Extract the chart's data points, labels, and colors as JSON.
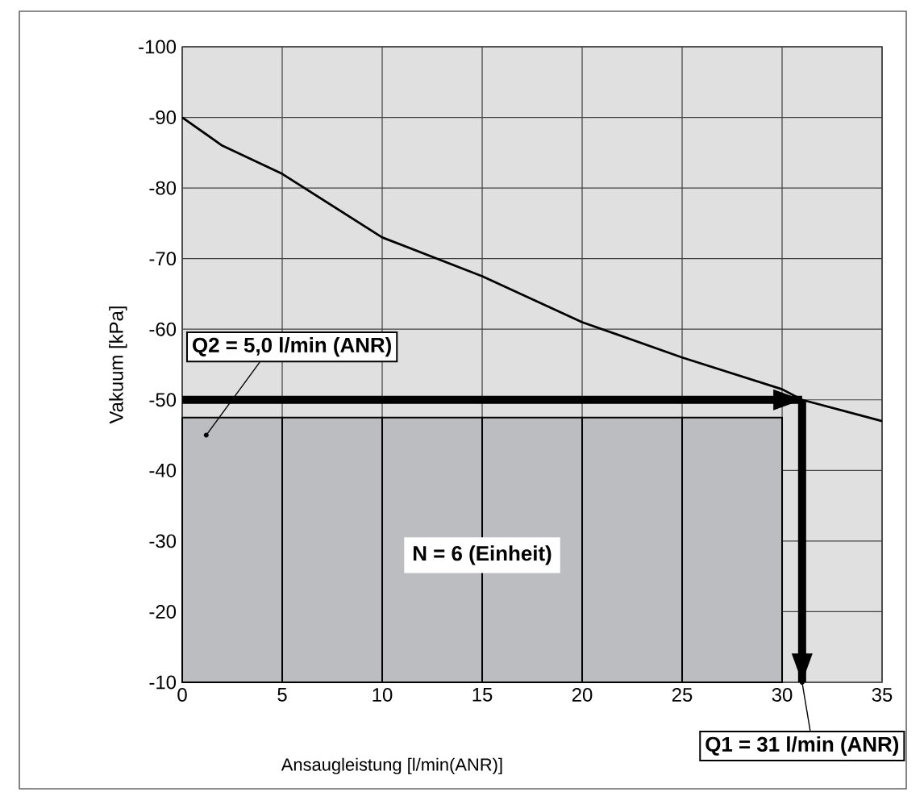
{
  "chart_data": {
    "type": "line",
    "xlabel": "Ansaugleistung [l/min(ANR)]",
    "ylabel": "Vakuum [kPa]",
    "xlim": [
      0,
      35
    ],
    "ylim": [
      -10,
      -100
    ],
    "xticks": [
      0,
      5,
      10,
      15,
      20,
      25,
      30,
      35
    ],
    "yticks": [
      -100,
      -90,
      -80,
      -70,
      -60,
      -50,
      -40,
      -30,
      -20,
      -10
    ],
    "grid": true,
    "series": [
      {
        "type": "bar",
        "color": "#bcbdc0",
        "x": [
          2.5,
          7.5,
          12.5,
          17.5,
          22.5,
          27.5
        ],
        "base": [
          -10,
          -10,
          -10,
          -10,
          -10,
          -10
        ],
        "values": [
          -37.5,
          -37.5,
          -37.5,
          -37.5,
          -37.5,
          -37.5
        ]
      },
      {
        "color": "#000000",
        "x": [
          0,
          2,
          5,
          10,
          15,
          20,
          25,
          30,
          31,
          33,
          35
        ],
        "values": [
          -90,
          -86,
          -82,
          -73,
          -67.5,
          -61,
          -56,
          -51.5,
          -50,
          -48.5,
          -47
        ]
      },
      {
        "color": "#000000",
        "x": [
          0,
          31
        ],
        "values": [
          -50,
          -50
        ]
      },
      {
        "color": "#000000",
        "x": [
          31,
          31
        ],
        "values": [
          -50,
          -10
        ]
      }
    ],
    "annotations": [
      {
        "text": "Q2 = 5,0 l/min (ANR)",
        "x": 1.2,
        "y": -45
      },
      "N = 6 (Einheit)",
      {
        "text": "Q1 = 31 l/min (ANR)",
        "x": 31,
        "y": -10
      }
    ]
  }
}
